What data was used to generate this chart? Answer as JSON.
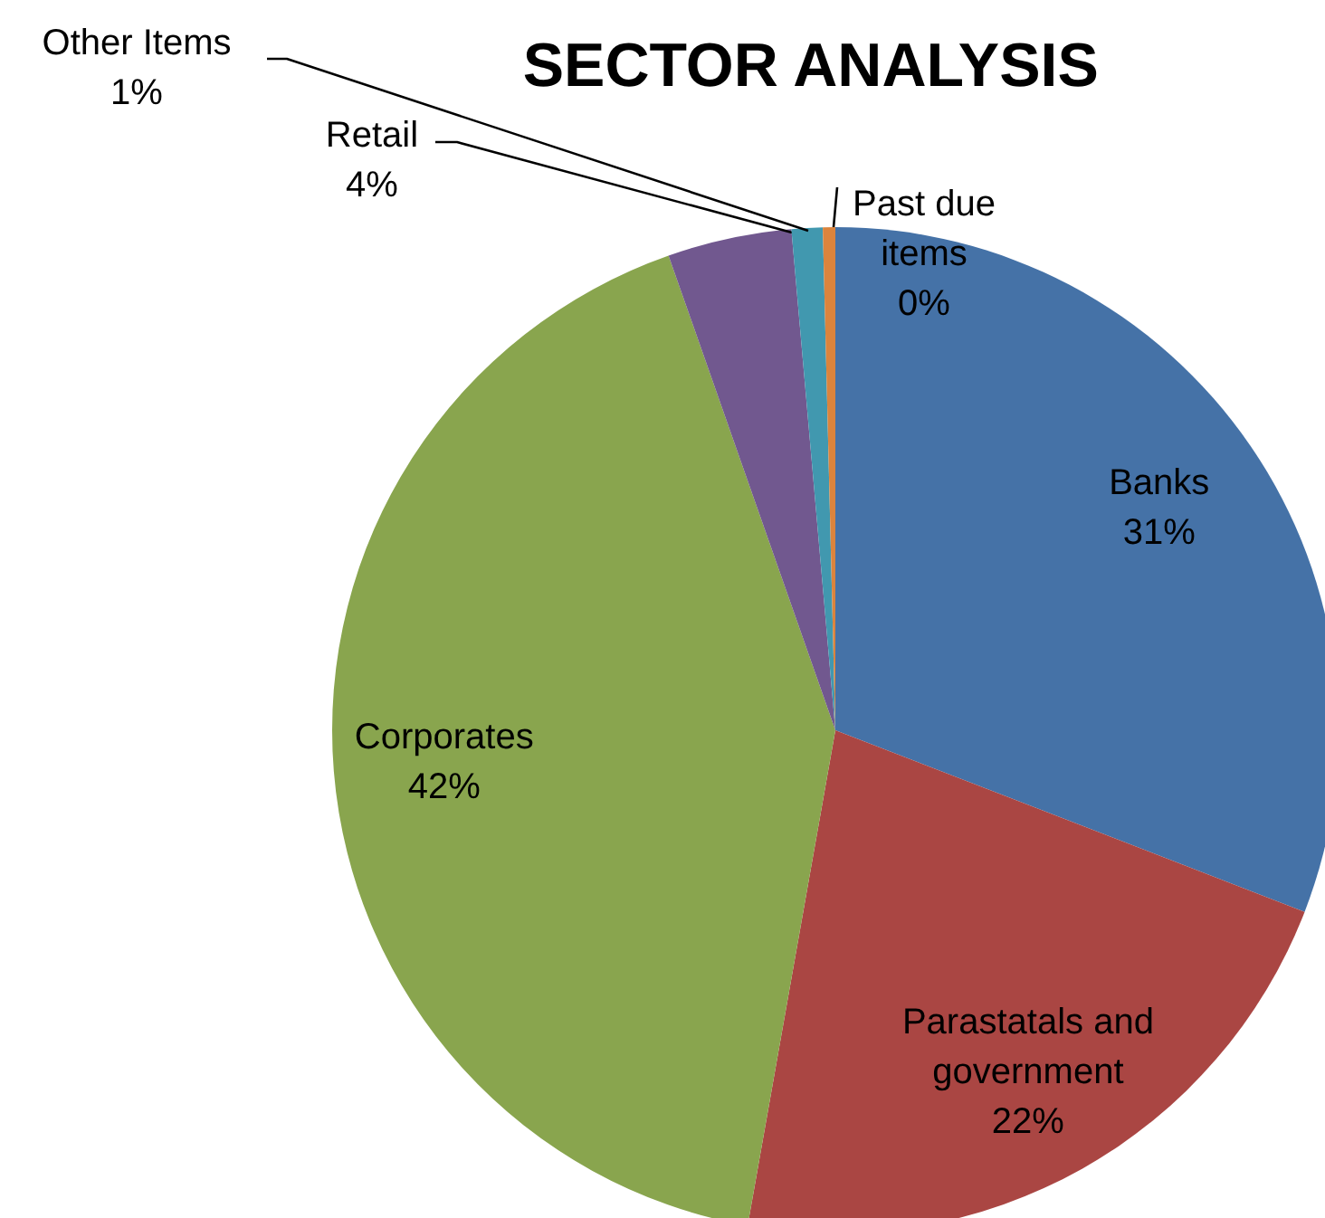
{
  "chart_data": {
    "type": "pie",
    "title": "SECTOR ANALYSIS",
    "categories": [
      "Banks",
      "Parastatals and government",
      "Corporates",
      "Retail",
      "Other Items",
      "Past due items"
    ],
    "values": [
      31,
      22,
      42,
      4,
      1,
      0.4
    ],
    "value_labels": [
      "31%",
      "22%",
      "42%",
      "4%",
      "1%",
      "0%"
    ],
    "colors": [
      "#4572a7",
      "#aa4643",
      "#89a54e",
      "#71588f",
      "#4198af",
      "#db843d"
    ]
  }
}
